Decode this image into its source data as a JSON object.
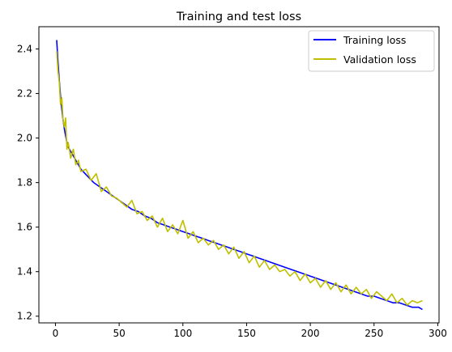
{
  "chart_data": {
    "type": "line",
    "title": "Training and test loss",
    "xlabel": "",
    "ylabel": "",
    "xlim": [
      -13,
      301
    ],
    "ylim": [
      1.17,
      2.5
    ],
    "xticks": [
      0,
      50,
      100,
      150,
      200,
      250,
      300
    ],
    "yticks": [
      1.2,
      1.4,
      1.6,
      1.8,
      2.0,
      2.2,
      2.4
    ],
    "xtick_labels": [
      "0",
      "50",
      "100",
      "150",
      "200",
      "250",
      "300"
    ],
    "ytick_labels": [
      "1.2",
      "1.4",
      "1.6",
      "1.8",
      "2.0",
      "2.2",
      "2.4"
    ],
    "legend_position": "top-right",
    "series": [
      {
        "name": "Training loss",
        "color": "#0000ff",
        "x": [
          1,
          2,
          3,
          4,
          5,
          6,
          7,
          8,
          9,
          10,
          12,
          14,
          16,
          18,
          20,
          25,
          30,
          35,
          40,
          45,
          50,
          55,
          60,
          65,
          70,
          75,
          80,
          85,
          90,
          95,
          100,
          105,
          110,
          115,
          120,
          125,
          130,
          135,
          140,
          145,
          150,
          155,
          160,
          165,
          170,
          175,
          180,
          185,
          190,
          195,
          200,
          205,
          210,
          215,
          220,
          225,
          230,
          235,
          240,
          245,
          250,
          255,
          260,
          265,
          270,
          275,
          280,
          285,
          288
        ],
        "y": [
          2.44,
          2.34,
          2.26,
          2.19,
          2.13,
          2.08,
          2.04,
          2.01,
          1.98,
          1.96,
          1.94,
          1.92,
          1.9,
          1.88,
          1.86,
          1.83,
          1.8,
          1.78,
          1.76,
          1.74,
          1.72,
          1.7,
          1.68,
          1.67,
          1.65,
          1.64,
          1.62,
          1.61,
          1.6,
          1.59,
          1.58,
          1.57,
          1.56,
          1.55,
          1.54,
          1.53,
          1.52,
          1.51,
          1.5,
          1.49,
          1.48,
          1.47,
          1.46,
          1.45,
          1.44,
          1.43,
          1.42,
          1.41,
          1.4,
          1.39,
          1.38,
          1.37,
          1.36,
          1.35,
          1.34,
          1.33,
          1.32,
          1.31,
          1.3,
          1.29,
          1.29,
          1.28,
          1.27,
          1.26,
          1.26,
          1.25,
          1.24,
          1.24,
          1.23
        ]
      },
      {
        "name": "Validation loss",
        "color": "#bfbf00",
        "x": [
          1,
          2,
          3,
          4,
          5,
          6,
          7,
          8,
          9,
          10,
          12,
          14,
          16,
          18,
          20,
          24,
          28,
          32,
          36,
          40,
          44,
          48,
          52,
          56,
          60,
          64,
          68,
          72,
          76,
          80,
          84,
          88,
          92,
          96,
          100,
          104,
          108,
          112,
          116,
          120,
          124,
          128,
          132,
          136,
          140,
          144,
          148,
          152,
          156,
          160,
          164,
          168,
          172,
          176,
          180,
          184,
          188,
          192,
          196,
          200,
          204,
          208,
          212,
          216,
          220,
          224,
          228,
          232,
          236,
          240,
          244,
          248,
          252,
          256,
          260,
          264,
          268,
          272,
          276,
          280,
          284,
          288
        ],
        "y": [
          2.39,
          2.3,
          2.25,
          2.15,
          2.18,
          2.08,
          2.05,
          2.09,
          1.95,
          1.98,
          1.91,
          1.95,
          1.88,
          1.9,
          1.85,
          1.86,
          1.81,
          1.84,
          1.76,
          1.78,
          1.74,
          1.73,
          1.71,
          1.69,
          1.72,
          1.66,
          1.67,
          1.63,
          1.65,
          1.6,
          1.64,
          1.58,
          1.61,
          1.57,
          1.63,
          1.55,
          1.58,
          1.53,
          1.55,
          1.52,
          1.54,
          1.5,
          1.52,
          1.48,
          1.51,
          1.46,
          1.49,
          1.44,
          1.47,
          1.42,
          1.45,
          1.41,
          1.43,
          1.4,
          1.41,
          1.38,
          1.4,
          1.36,
          1.39,
          1.35,
          1.37,
          1.33,
          1.36,
          1.32,
          1.35,
          1.31,
          1.34,
          1.3,
          1.33,
          1.3,
          1.32,
          1.28,
          1.31,
          1.29,
          1.27,
          1.3,
          1.26,
          1.28,
          1.25,
          1.27,
          1.26,
          1.27
        ]
      }
    ]
  }
}
